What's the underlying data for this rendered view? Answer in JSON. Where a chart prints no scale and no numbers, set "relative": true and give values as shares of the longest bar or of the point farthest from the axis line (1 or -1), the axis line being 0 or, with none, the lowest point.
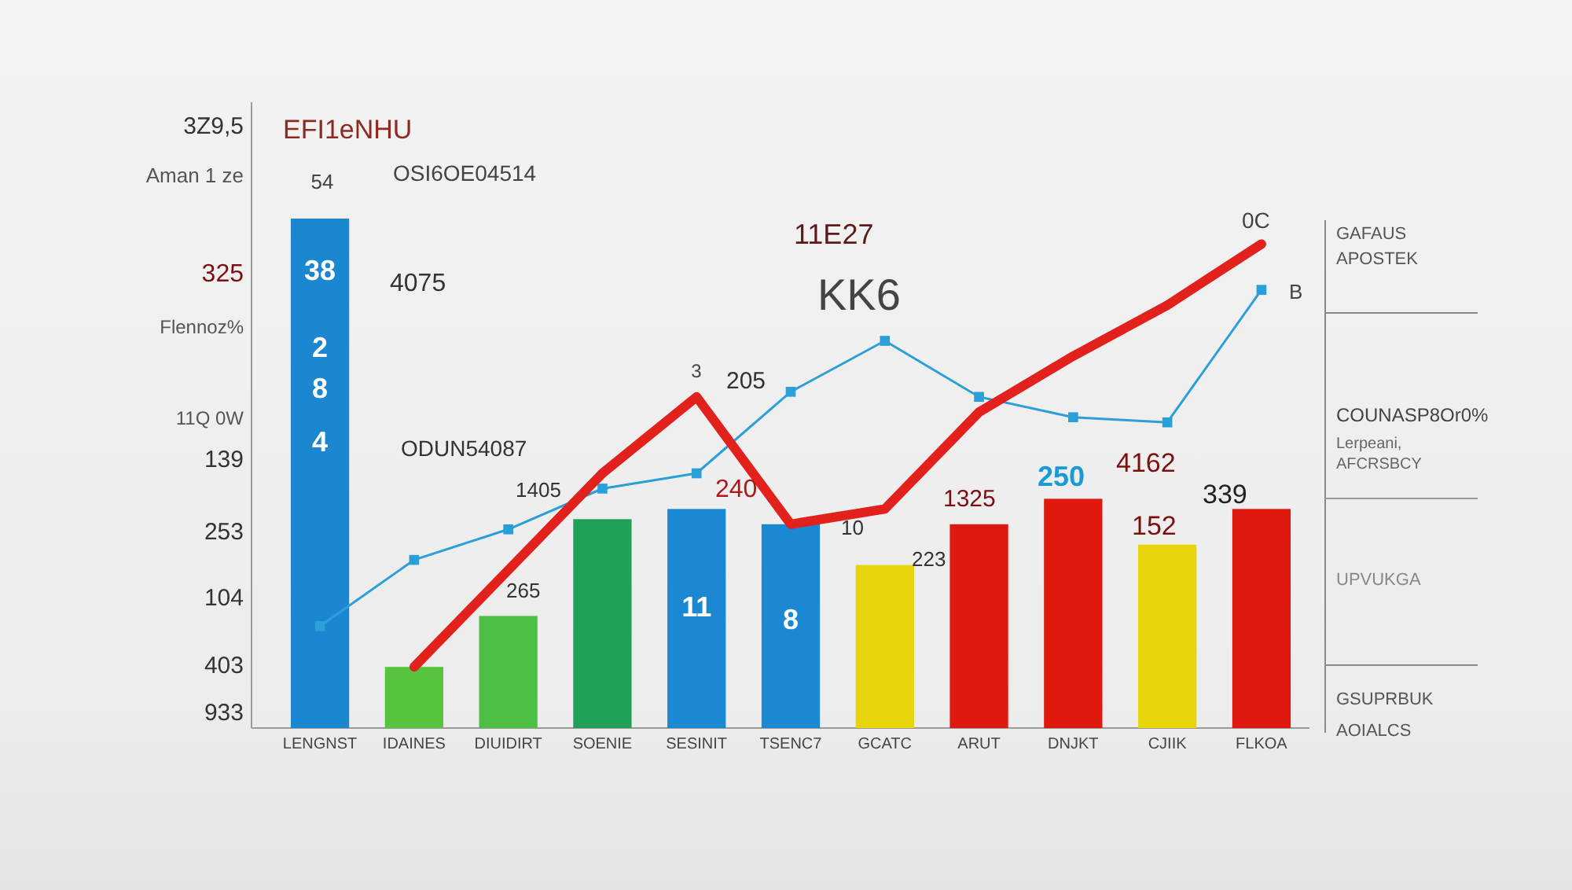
{
  "chart_data": {
    "type": "bar",
    "relative": true,
    "title": "EFI1eNHU",
    "categories": [
      "LENGNST",
      "IDAINES",
      "DIUIDIRT",
      "SOENIE",
      "SESINIT",
      "TSENC7",
      "GCATC",
      "ARUT",
      "DNJKT",
      "CJIIK",
      "FLKOA"
    ],
    "series": [
      {
        "colors": [
          "#1b87d1",
          "#57c43f",
          "#4dbf45",
          "#1fa257",
          "#1a88d2",
          "#1a88d2",
          "#e8d40a",
          "#e0190f",
          "#e0190f",
          "#e8d40a",
          "#e0190f"
        ],
        "values": [
          1,
          0.12,
          0.22,
          0.41,
          0.43,
          0.4,
          0.32,
          0.4,
          0.45,
          0.36,
          0.43
        ]
      },
      {
        "type": "line",
        "color": "#2b9fd8",
        "marker": "square",
        "values": [
          0.2,
          0.33,
          0.39,
          0.47,
          0.5,
          0.66,
          0.76,
          0.65,
          0.61,
          0.6,
          0.86
        ]
      },
      {
        "type": "line",
        "color": "#e3211c",
        "values": [
          null,
          0.12,
          0.31,
          0.5,
          0.65,
          0.4,
          0.43,
          0.62,
          0.73,
          0.83,
          0.95
        ]
      }
    ],
    "annotations": [
      "3Z9,5",
      "Aman 1 ze",
      "325",
      "Flennoz%",
      "11Q 0W",
      "139",
      "253",
      "104",
      "403",
      "933",
      "54",
      "OSI6OE04514",
      "4075",
      "ODUN54087",
      "1405",
      "265",
      "205",
      "240",
      "3",
      "11E27",
      "KK6",
      "10",
      "223",
      "1325",
      "250",
      "4162",
      "339",
      "152",
      "0C",
      "B",
      "38",
      "2",
      "8",
      "4",
      "11",
      "8",
      "GAFAUS",
      "APOSTEK",
      "COUNASP8Or0%",
      "Lerpeani,",
      "AFCRSBCY",
      "UPVUKGA",
      "GSUPRBUK",
      "AOIALCS"
    ]
  }
}
